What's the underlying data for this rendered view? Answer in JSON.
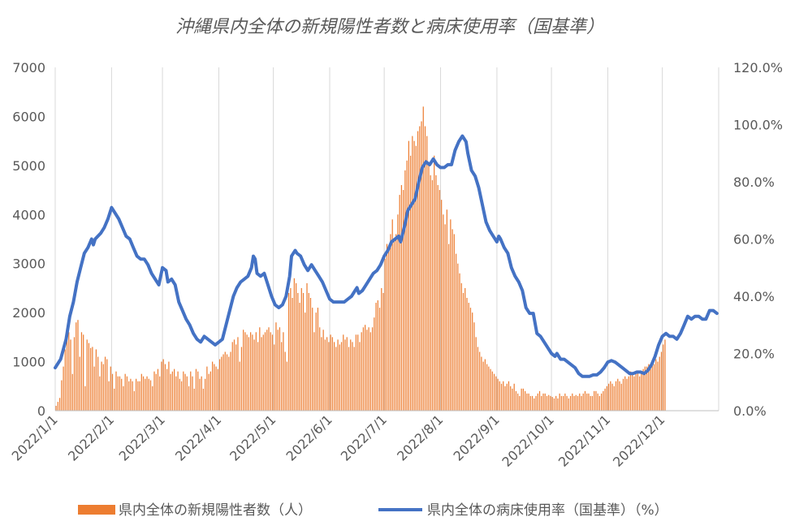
{
  "chart_data": {
    "type": "bar+line",
    "title": "沖縄県内全体の新規陽性者数と病床使用率（国基準）",
    "x_tick_labels": [
      "2022/1/1",
      "2022/2/1",
      "2022/3/1",
      "2022/4/1",
      "2022/5/1",
      "2022/6/1",
      "2022/7/1",
      "2022/8/1",
      "2022/9/1",
      "2022/10/1",
      "2022/11/1",
      "2022/12/1"
    ],
    "x_tick_days": [
      0,
      31,
      59,
      90,
      120,
      151,
      181,
      212,
      243,
      273,
      304,
      334
    ],
    "days_in_year": 365,
    "left_axis": {
      "ylim": [
        0,
        7000
      ],
      "ticks": [
        0,
        1000,
        2000,
        3000,
        4000,
        5000,
        6000,
        7000
      ],
      "tick_labels": [
        "0",
        "1000",
        "2000",
        "3000",
        "4000",
        "5000",
        "6000",
        "7000"
      ]
    },
    "right_axis": {
      "ylim": [
        0,
        120
      ],
      "ticks": [
        0,
        20,
        40,
        60,
        80,
        100,
        120
      ],
      "tick_labels": [
        "0.0%",
        "20.0%",
        "40.0%",
        "60.0%",
        "80.0%",
        "100.0%",
        "120.0%"
      ]
    },
    "grid": "vertical",
    "legend_position": "bottom",
    "colors": {
      "bars": "#ED7D31",
      "line": "#4472C4",
      "grid": "#D9D9D9",
      "axis": "#BFBFBF",
      "text": "#595959"
    },
    "series": [
      {
        "name": "県内全体の新規陽性者数（人）",
        "type": "bar",
        "axis": "left",
        "x_start": 0,
        "values": [
          100,
          180,
          260,
          620,
          900,
          1250,
          1550,
          1600,
          1450,
          750,
          1500,
          1800,
          1850,
          1100,
          1600,
          1550,
          500,
          1450,
          1380,
          1280,
          1300,
          900,
          1250,
          1100,
          700,
          1000,
          950,
          1100,
          1050,
          600,
          900,
          750,
          450,
          800,
          700,
          700,
          650,
          500,
          750,
          700,
          600,
          650,
          600,
          400,
          650,
          600,
          600,
          750,
          700,
          650,
          700,
          650,
          620,
          500,
          800,
          750,
          850,
          700,
          1000,
          1050,
          950,
          850,
          1000,
          750,
          800,
          850,
          700,
          800,
          650,
          600,
          800,
          750,
          700,
          500,
          800,
          700,
          450,
          850,
          800,
          650,
          700,
          450,
          650,
          900,
          750,
          800,
          1000,
          950,
          900,
          850,
          1050,
          1100,
          1150,
          1200,
          1150,
          1100,
          1200,
          1400,
          1450,
          1350,
          1500,
          1000,
          1300,
          1650,
          1600,
          1550,
          1500,
          1600,
          1550,
          1450,
          1600,
          1400,
          1700,
          1500,
          1550,
          1600,
          1650,
          1700,
          1600,
          1550,
          1350,
          1800,
          1650,
          1700,
          1400,
          1600,
          1200,
          1000,
          2400,
          2500,
          2300,
          2700,
          2600,
          2400,
          2200,
          2500,
          2400,
          2000,
          2600,
          2400,
          2300,
          2100,
          1600,
          2000,
          2100,
          1700,
          1500,
          1650,
          1450,
          1500,
          1400,
          1550,
          1500,
          1400,
          1300,
          1450,
          1350,
          1400,
          1550,
          1450,
          1500,
          1300,
          1450,
          1400,
          1300,
          1550,
          1550,
          1400,
          1600,
          1700,
          1750,
          1650,
          1700,
          1600,
          1700,
          1900,
          2200,
          2250,
          2100,
          2500,
          2400,
          3100,
          3400,
          3300,
          3600,
          3900,
          3500,
          3600,
          4000,
          4400,
          4600,
          4500,
          4900,
          5100,
          5500,
          5200,
          5600,
          5500,
          5400,
          5700,
          5800,
          5900,
          6200,
          5800,
          5600,
          5000,
          4800,
          4700,
          5200,
          4800,
          4600,
          4500,
          4300,
          4000,
          3800,
          4100,
          3400,
          3900,
          3700,
          3600,
          3200,
          3000,
          2800,
          2600,
          2400,
          2500,
          2300,
          2200,
          2100,
          2000,
          1800,
          1500,
          1300,
          1200,
          1100,
          1000,
          1050,
          950,
          900,
          850,
          800,
          750,
          700,
          650,
          600,
          550,
          600,
          500,
          550,
          600,
          500,
          450,
          550,
          400,
          350,
          300,
          450,
          450,
          400,
          350,
          350,
          300,
          300,
          250,
          300,
          350,
          400,
          300,
          350,
          350,
          300,
          320,
          300,
          280,
          250,
          300,
          250,
          350,
          300,
          300,
          350,
          300,
          250,
          300,
          350,
          300,
          320,
          300,
          350,
          300,
          350,
          400,
          350,
          350,
          300,
          300,
          400,
          400,
          350,
          300,
          350,
          400,
          450,
          500,
          550,
          600,
          550,
          500,
          600,
          650,
          600,
          550,
          650,
          700,
          650,
          700,
          800,
          750,
          700,
          750,
          800,
          700,
          800,
          850,
          900,
          900,
          950,
          850,
          1000,
          950,
          1050,
          1000,
          1100,
          1200,
          1350,
          1450
        ]
      },
      {
        "name": "県内全体の病床使用率（国基準）（%）",
        "type": "line",
        "axis": "right",
        "points": [
          [
            0,
            15
          ],
          [
            3,
            18
          ],
          [
            6,
            25
          ],
          [
            8,
            33
          ],
          [
            10,
            38
          ],
          [
            12,
            45
          ],
          [
            14,
            50
          ],
          [
            16,
            55
          ],
          [
            18,
            57
          ],
          [
            20,
            60
          ],
          [
            21,
            58
          ],
          [
            22,
            60
          ],
          [
            25,
            62
          ],
          [
            27,
            64
          ],
          [
            29,
            67
          ],
          [
            31,
            71
          ],
          [
            33,
            69
          ],
          [
            35,
            67
          ],
          [
            37,
            64
          ],
          [
            39,
            61
          ],
          [
            41,
            60
          ],
          [
            43,
            57
          ],
          [
            45,
            54
          ],
          [
            47,
            53
          ],
          [
            49,
            53
          ],
          [
            51,
            51
          ],
          [
            53,
            48
          ],
          [
            55,
            46
          ],
          [
            57,
            44
          ],
          [
            59,
            50
          ],
          [
            61,
            49
          ],
          [
            62,
            45
          ],
          [
            64,
            46
          ],
          [
            66,
            44
          ],
          [
            68,
            38
          ],
          [
            70,
            35
          ],
          [
            72,
            32
          ],
          [
            74,
            30
          ],
          [
            76,
            27
          ],
          [
            78,
            25
          ],
          [
            80,
            24
          ],
          [
            82,
            26
          ],
          [
            84,
            25
          ],
          [
            86,
            24
          ],
          [
            88,
            23
          ],
          [
            90,
            24
          ],
          [
            92,
            25
          ],
          [
            94,
            30
          ],
          [
            96,
            35
          ],
          [
            98,
            40
          ],
          [
            100,
            43
          ],
          [
            102,
            45
          ],
          [
            104,
            46
          ],
          [
            106,
            47
          ],
          [
            108,
            50
          ],
          [
            109,
            54
          ],
          [
            110,
            53
          ],
          [
            111,
            48
          ],
          [
            113,
            47
          ],
          [
            115,
            48
          ],
          [
            117,
            44
          ],
          [
            119,
            40
          ],
          [
            121,
            37
          ],
          [
            123,
            36
          ],
          [
            125,
            37
          ],
          [
            127,
            40
          ],
          [
            129,
            47
          ],
          [
            130,
            54
          ],
          [
            132,
            56
          ],
          [
            133,
            55
          ],
          [
            135,
            54
          ],
          [
            137,
            51
          ],
          [
            139,
            49
          ],
          [
            141,
            51
          ],
          [
            143,
            49
          ],
          [
            145,
            47
          ],
          [
            147,
            45
          ],
          [
            149,
            42
          ],
          [
            151,
            39
          ],
          [
            153,
            38
          ],
          [
            155,
            38
          ],
          [
            157,
            38
          ],
          [
            159,
            38
          ],
          [
            161,
            39
          ],
          [
            163,
            40
          ],
          [
            165,
            42
          ],
          [
            166,
            43
          ],
          [
            167,
            41
          ],
          [
            169,
            42
          ],
          [
            171,
            44
          ],
          [
            173,
            46
          ],
          [
            175,
            48
          ],
          [
            177,
            49
          ],
          [
            179,
            51
          ],
          [
            181,
            54
          ],
          [
            183,
            56
          ],
          [
            185,
            59
          ],
          [
            187,
            60
          ],
          [
            189,
            61
          ],
          [
            190,
            59
          ],
          [
            192,
            64
          ],
          [
            194,
            70
          ],
          [
            196,
            72
          ],
          [
            198,
            74
          ],
          [
            200,
            80
          ],
          [
            202,
            85
          ],
          [
            204,
            87
          ],
          [
            206,
            86
          ],
          [
            208,
            88
          ],
          [
            210,
            86
          ],
          [
            212,
            85
          ],
          [
            214,
            85
          ],
          [
            216,
            86
          ],
          [
            218,
            86
          ],
          [
            220,
            91
          ],
          [
            222,
            94
          ],
          [
            224,
            96
          ],
          [
            226,
            94
          ],
          [
            227,
            90
          ],
          [
            229,
            84
          ],
          [
            231,
            82
          ],
          [
            233,
            78
          ],
          [
            235,
            72
          ],
          [
            237,
            66
          ],
          [
            239,
            63
          ],
          [
            241,
            61
          ],
          [
            243,
            59
          ],
          [
            244,
            61
          ],
          [
            245,
            60
          ],
          [
            247,
            57
          ],
          [
            249,
            55
          ],
          [
            251,
            50
          ],
          [
            253,
            47
          ],
          [
            255,
            45
          ],
          [
            257,
            42
          ],
          [
            259,
            36
          ],
          [
            261,
            34
          ],
          [
            263,
            34
          ],
          [
            265,
            27
          ],
          [
            267,
            26
          ],
          [
            269,
            24
          ],
          [
            271,
            22
          ],
          [
            273,
            20
          ],
          [
            275,
            19
          ],
          [
            276,
            20
          ],
          [
            278,
            18
          ],
          [
            280,
            18
          ],
          [
            282,
            17
          ],
          [
            284,
            16
          ],
          [
            286,
            15
          ],
          [
            288,
            13
          ],
          [
            290,
            12
          ],
          [
            292,
            12
          ],
          [
            294,
            12
          ],
          [
            296,
            12.5
          ],
          [
            298,
            12.5
          ],
          [
            300,
            13.5
          ],
          [
            302,
            15
          ],
          [
            304,
            17
          ],
          [
            306,
            17.5
          ],
          [
            308,
            17
          ],
          [
            310,
            16
          ],
          [
            312,
            15
          ],
          [
            314,
            14
          ],
          [
            316,
            13
          ],
          [
            318,
            13
          ],
          [
            320,
            13.5
          ],
          [
            322,
            13.5
          ],
          [
            324,
            13
          ],
          [
            326,
            14
          ],
          [
            328,
            16
          ],
          [
            330,
            19
          ],
          [
            332,
            23
          ],
          [
            334,
            26
          ],
          [
            336,
            27
          ],
          [
            338,
            26
          ],
          [
            340,
            26
          ],
          [
            342,
            25
          ],
          [
            344,
            27
          ],
          [
            346,
            30
          ],
          [
            348,
            33
          ],
          [
            350,
            32
          ],
          [
            352,
            33
          ],
          [
            354,
            33
          ],
          [
            356,
            32
          ],
          [
            358,
            32
          ],
          [
            360,
            35
          ],
          [
            362,
            35
          ],
          [
            364,
            34
          ]
        ]
      }
    ]
  }
}
